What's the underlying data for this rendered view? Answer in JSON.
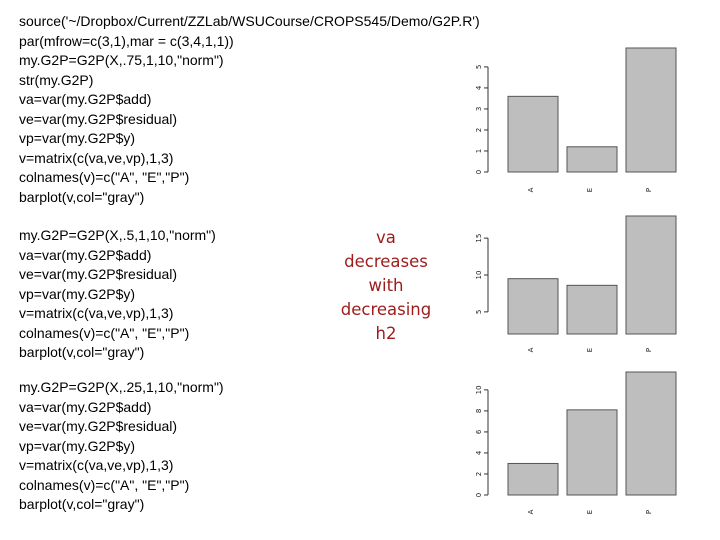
{
  "blocks": [
    {
      "code": [
        "source('~/Dropbox/Current/ZZLab/WSUCourse/CROPS545/Demo/G2P.R')",
        "par(mfrow=c(3,1),mar = c(3,4,1,1))",
        "my.G2P=G2P(X,.75,1,10,\"norm\")",
        "str(my.G2P)",
        "va=var(my.G2P$add)",
        "ve=var(my.G2P$residual)",
        "vp=var(my.G2P$y)",
        "v=matrix(c(va,ve,vp),1,3)",
        "colnames(v)=c(\"A\", \"E\",\"P\")",
        "barplot(v,col=\"gray\")"
      ]
    },
    {
      "code": [
        "my.G2P=G2P(X,.5,1,10,\"norm\")",
        "va=var(my.G2P$add)",
        "ve=var(my.G2P$residual)",
        "vp=var(my.G2P$y)",
        "v=matrix(c(va,ve,vp),1,3)",
        "colnames(v)=c(\"A\", \"E\",\"P\")",
        "barplot(v,col=\"gray\")"
      ]
    },
    {
      "code": [
        "my.G2P=G2P(X,.25,1,10,\"norm\")",
        "va=var(my.G2P$add)",
        "ve=var(my.G2P$residual)",
        "vp=var(my.G2P$y)",
        "v=matrix(c(va,ve,vp),1,3)",
        "colnames(v)=c(\"A\", \"E\",\"P\")",
        "barplot(v,col=\"gray\")"
      ]
    }
  ],
  "note": [
    "va",
    "decreases",
    "with",
    "decreasing",
    "h2"
  ],
  "colors": {
    "bar_fill": "#bebebe",
    "bar_stroke": "#555555",
    "note_text": "#9e1b1b"
  },
  "chart_data": [
    {
      "type": "bar",
      "categories": [
        "A",
        "E",
        "P"
      ],
      "values": [
        3.6,
        1.2,
        5.9
      ],
      "yticks": [
        0,
        1,
        2,
        3,
        4,
        5
      ],
      "ylim": [
        0,
        5.9
      ]
    },
    {
      "type": "bar",
      "categories": [
        "A",
        "E",
        "P"
      ],
      "values": [
        9.5,
        8.6,
        18
      ],
      "yticks": [
        5,
        10,
        15
      ],
      "ylim": [
        2,
        18
      ]
    },
    {
      "type": "bar",
      "categories": [
        "A",
        "E",
        "P"
      ],
      "values": [
        3.0,
        8.1,
        11.7
      ],
      "yticks": [
        0,
        2,
        4,
        6,
        8,
        10
      ],
      "ylim": [
        0,
        11.7
      ]
    }
  ]
}
